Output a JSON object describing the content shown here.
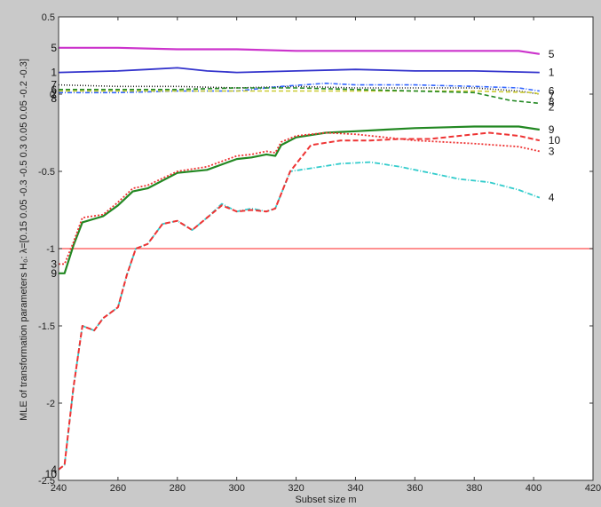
{
  "chart_data": {
    "type": "line",
    "title": "",
    "xlabel": "Subset size m",
    "ylabel": "MLE of transformation parameters H₀: λ=[0.15 0.05 -0.3 -0.5 0.3 0.05 0.05 -0.2 -0.3]",
    "xlim": [
      240,
      420
    ],
    "ylim": [
      -2.5,
      0.5
    ],
    "xticks": [
      240,
      260,
      280,
      300,
      320,
      340,
      360,
      380,
      400,
      420
    ],
    "yticks": [
      -2.5,
      -2,
      -1.5,
      -1,
      -0.5,
      0,
      0.5
    ],
    "xtick_labels": [
      "240",
      "260",
      "280",
      "300",
      "320",
      "340",
      "360",
      "380",
      "400",
      "420"
    ],
    "ytick_labels": [
      "-2.5",
      "-2",
      "-1.5",
      "-1",
      "-0.5",
      "0",
      "0.5"
    ],
    "grid": false,
    "legend": "none",
    "reference_line": {
      "y": -1,
      "color": "#ff4d4d"
    },
    "colors": {
      "figure_bg": "#c9c9c9",
      "plot_bg": "#ffffff"
    },
    "series": [
      {
        "label": "5",
        "start_label": "5",
        "color": "#cc33cc",
        "dash": "solid",
        "width": 2.2,
        "x": [
          240,
          260,
          280,
          300,
          320,
          340,
          360,
          380,
          395,
          402
        ],
        "y": [
          0.3,
          0.3,
          0.29,
          0.29,
          0.28,
          0.28,
          0.28,
          0.28,
          0.28,
          0.26
        ]
      },
      {
        "label": "1",
        "start_label": "1",
        "color": "#3333cc",
        "dash": "solid",
        "width": 1.8,
        "x": [
          240,
          260,
          270,
          280,
          290,
          300,
          320,
          340,
          360,
          380,
          402
        ],
        "y": [
          0.14,
          0.15,
          0.16,
          0.17,
          0.15,
          0.14,
          0.15,
          0.16,
          0.15,
          0.15,
          0.14
        ]
      },
      {
        "label": "7",
        "start_label": "7",
        "color": "#222222",
        "dash": "1,2",
        "width": 1.6,
        "x": [
          240,
          260,
          280,
          300,
          320,
          340,
          360,
          380,
          395,
          402
        ],
        "y": [
          0.06,
          0.05,
          0.05,
          0.04,
          0.05,
          0.04,
          0.04,
          0.04,
          0.02,
          0.0
        ]
      },
      {
        "label": "6",
        "start_label": "8",
        "color": "#3366ff",
        "dash": "5,2,1,2",
        "width": 1.6,
        "x": [
          240,
          260,
          280,
          300,
          315,
          330,
          340,
          360,
          380,
          395,
          402
        ],
        "y": [
          0.01,
          0.01,
          0.02,
          0.02,
          0.05,
          0.07,
          0.06,
          0.06,
          0.05,
          0.04,
          0.02
        ]
      },
      {
        "label": "8",
        "start_label": "2",
        "color": "#cccc33",
        "dash": "5,3",
        "width": 1.6,
        "x": [
          240,
          260,
          280,
          300,
          320,
          340,
          360,
          380,
          400,
          402
        ],
        "y": [
          0.02,
          0.02,
          0.02,
          0.02,
          0.02,
          0.02,
          0.02,
          0.02,
          0.01,
          0.0
        ]
      },
      {
        "label": "2",
        "start_label": "6",
        "color": "#228822",
        "dash": "5,3",
        "width": 1.6,
        "x": [
          240,
          260,
          280,
          300,
          320,
          340,
          360,
          380,
          392,
          402
        ],
        "y": [
          0.03,
          0.03,
          0.03,
          0.04,
          0.04,
          0.03,
          0.02,
          0.01,
          -0.04,
          -0.06
        ]
      },
      {
        "label": "9",
        "start_label": "9",
        "color": "#228822",
        "dash": "solid",
        "width": 2.2,
        "x": [
          240,
          242,
          245,
          248,
          255,
          260,
          265,
          270,
          280,
          290,
          300,
          305,
          310,
          313,
          315,
          320,
          330,
          340,
          350,
          360,
          380,
          395,
          402
        ],
        "y": [
          -1.16,
          -1.16,
          -0.98,
          -0.83,
          -0.79,
          -0.72,
          -0.63,
          -0.61,
          -0.51,
          -0.49,
          -0.42,
          -0.41,
          -0.39,
          -0.4,
          -0.33,
          -0.28,
          -0.25,
          -0.24,
          -0.23,
          -0.22,
          -0.21,
          -0.21,
          -0.23
        ]
      },
      {
        "label": "3",
        "start_label": "3",
        "color": "#ee3333",
        "dash": "2,2",
        "width": 1.8,
        "x": [
          240,
          242,
          245,
          248,
          255,
          260,
          265,
          270,
          280,
          290,
          300,
          305,
          310,
          313,
          315,
          320,
          330,
          340,
          350,
          360,
          380,
          395,
          402
        ],
        "y": [
          -1.1,
          -1.1,
          -0.96,
          -0.8,
          -0.78,
          -0.7,
          -0.61,
          -0.59,
          -0.5,
          -0.47,
          -0.4,
          -0.39,
          -0.37,
          -0.38,
          -0.31,
          -0.27,
          -0.25,
          -0.26,
          -0.28,
          -0.3,
          -0.32,
          -0.34,
          -0.37
        ]
      },
      {
        "label": "4",
        "start_label": "4",
        "color": "#33cccc",
        "dash": "6,2,1,2",
        "width": 1.8,
        "x": [
          240,
          242,
          245,
          248,
          252,
          255,
          260,
          263,
          266,
          270,
          275,
          280,
          285,
          290,
          295,
          300,
          305,
          310,
          313,
          318,
          325,
          335,
          345,
          355,
          365,
          375,
          385,
          395,
          402
        ],
        "y": [
          -2.43,
          -2.4,
          -1.9,
          -1.5,
          -1.53,
          -1.45,
          -1.38,
          -1.17,
          -1.0,
          -0.97,
          -0.84,
          -0.82,
          -0.88,
          -0.8,
          -0.71,
          -0.76,
          -0.74,
          -0.76,
          -0.74,
          -0.5,
          -0.48,
          -0.45,
          -0.44,
          -0.47,
          -0.51,
          -0.55,
          -0.57,
          -0.62,
          -0.67
        ]
      },
      {
        "label": "10",
        "start_label": "10",
        "color": "#ee3333",
        "dash": "6,3",
        "width": 2.0,
        "x": [
          240,
          242,
          245,
          248,
          252,
          255,
          260,
          263,
          266,
          270,
          275,
          280,
          285,
          290,
          295,
          300,
          305,
          310,
          313,
          318,
          325,
          335,
          345,
          355,
          365,
          375,
          385,
          395,
          402
        ],
        "y": [
          -2.43,
          -2.4,
          -1.9,
          -1.5,
          -1.53,
          -1.45,
          -1.38,
          -1.17,
          -1.0,
          -0.97,
          -0.84,
          -0.82,
          -0.88,
          -0.8,
          -0.72,
          -0.76,
          -0.75,
          -0.76,
          -0.74,
          -0.5,
          -0.33,
          -0.3,
          -0.3,
          -0.29,
          -0.29,
          -0.27,
          -0.25,
          -0.27,
          -0.3
        ]
      }
    ]
  }
}
